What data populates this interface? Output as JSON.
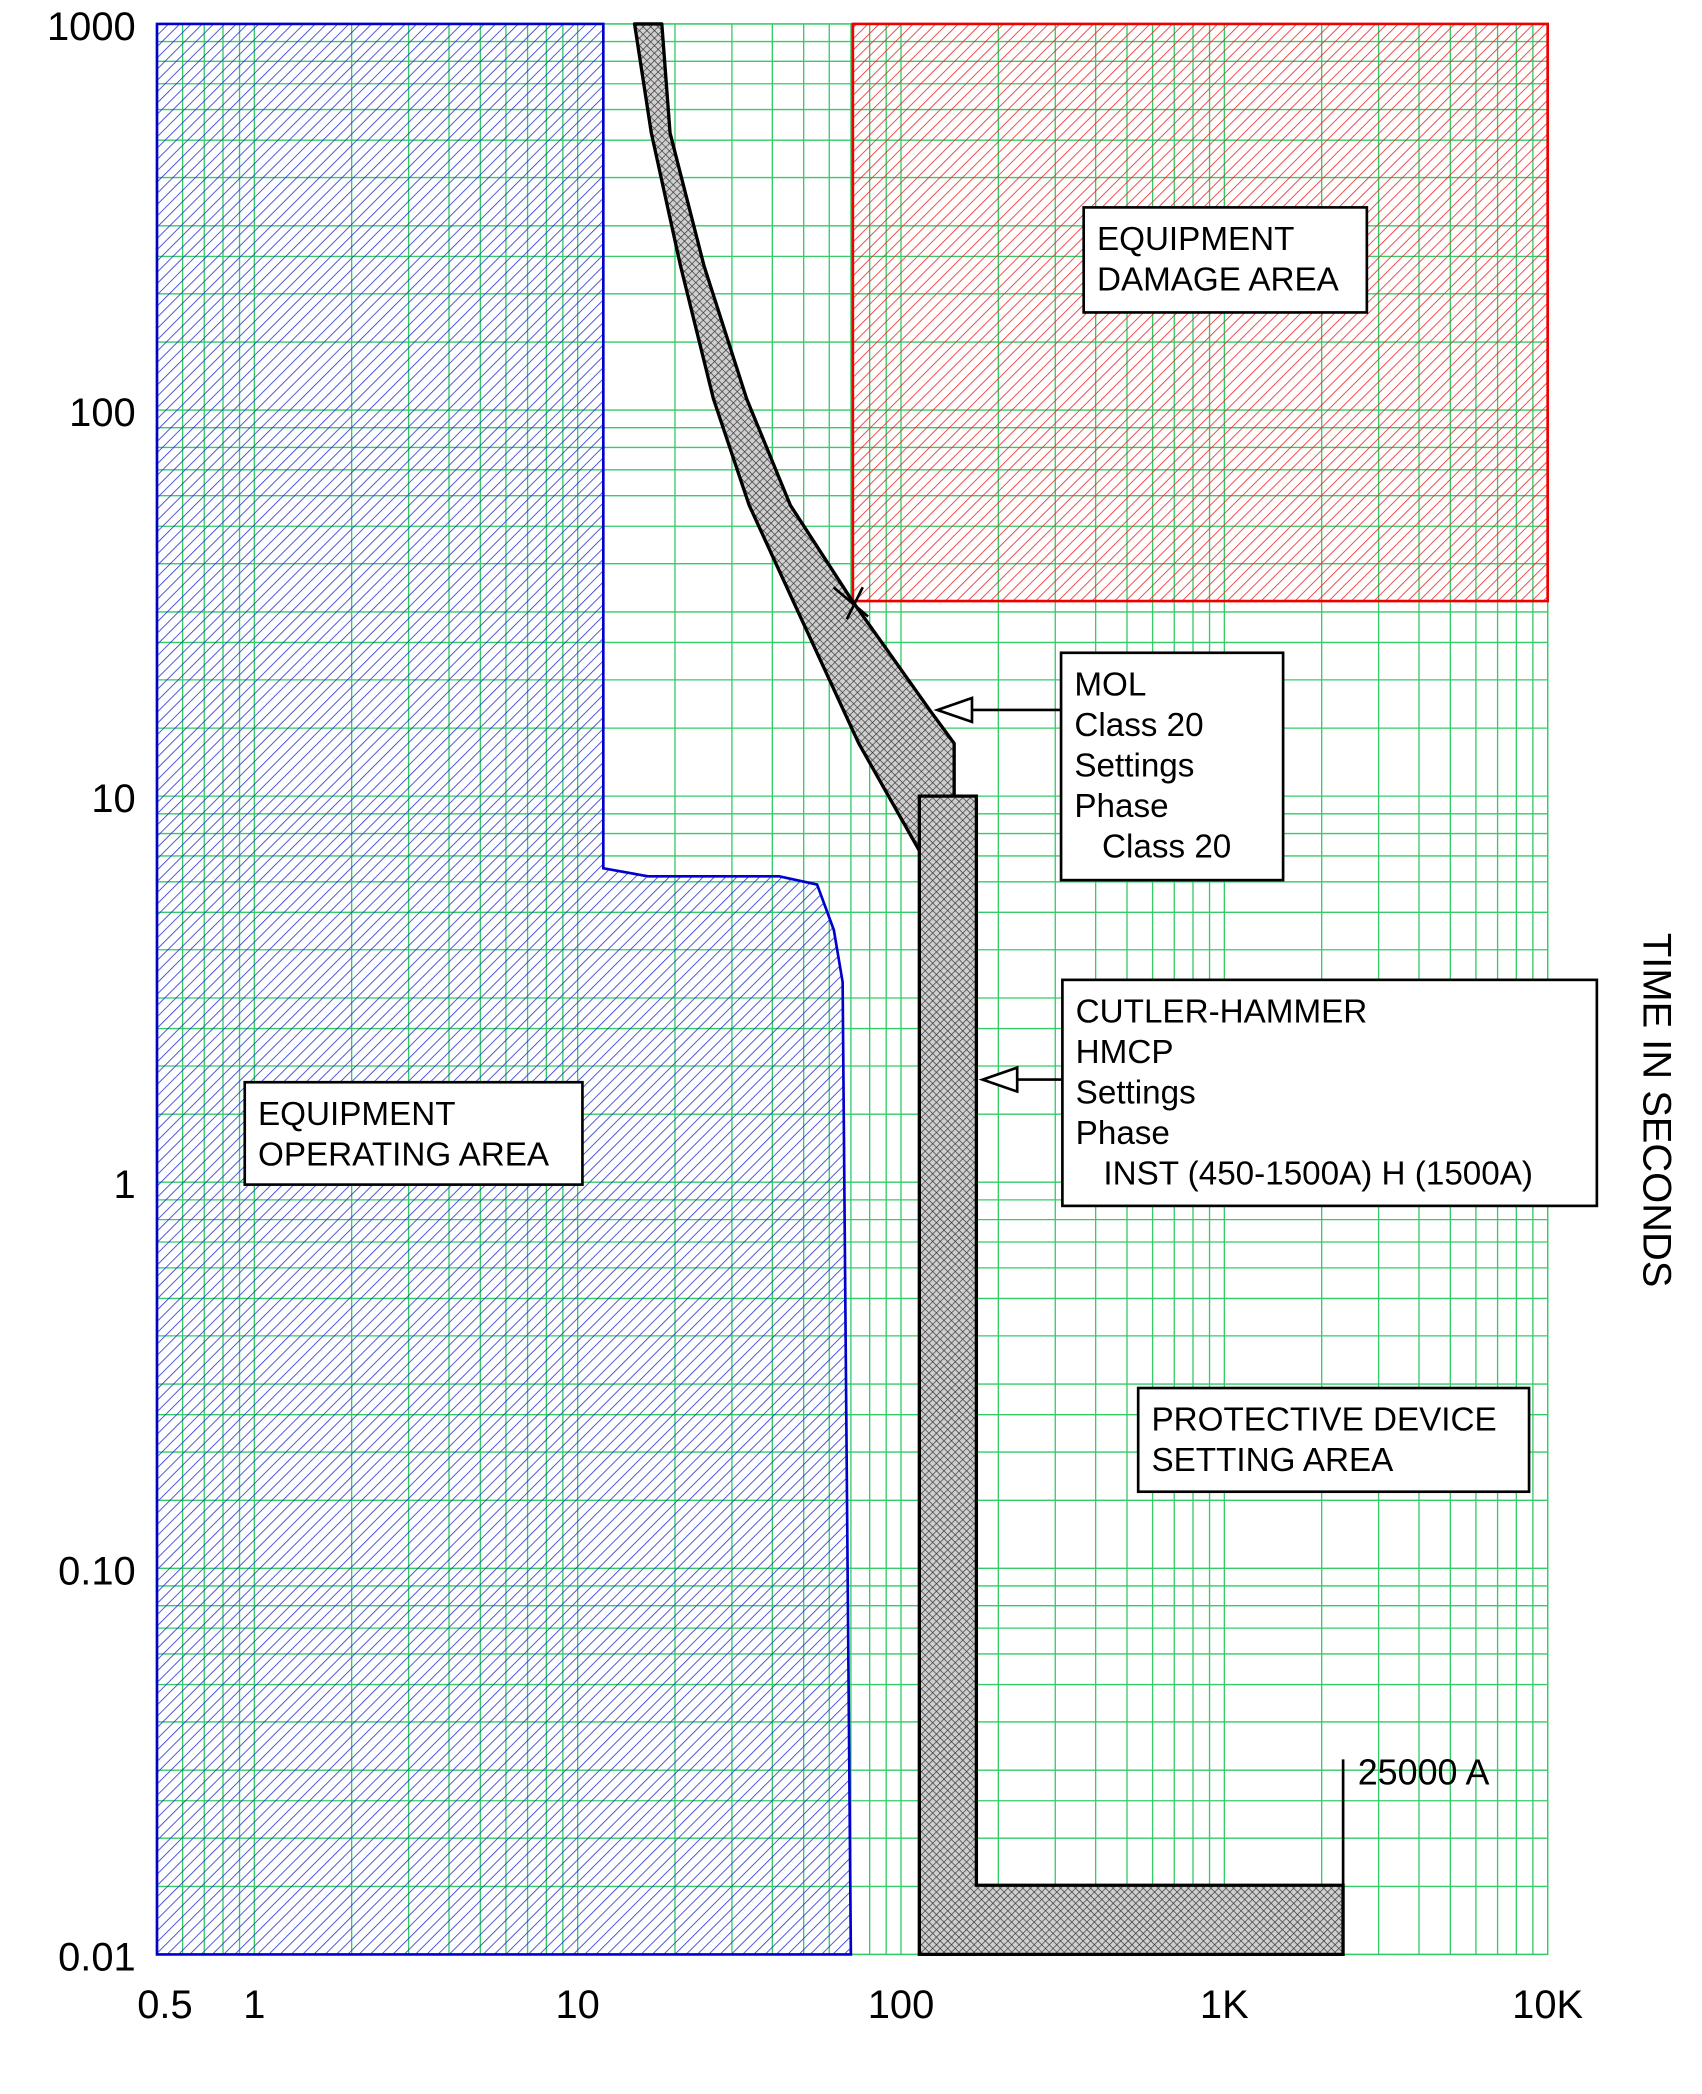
{
  "chart_data": {
    "type": "area",
    "title": "",
    "xlabel": "",
    "ylabel": "TIME IN SECONDS",
    "x_scale": "log",
    "y_scale": "log",
    "xlim": [
      0.5,
      10000
    ],
    "ylim": [
      0.01,
      1000
    ],
    "grid": true,
    "x_ticks": [
      {
        "value": 0.5,
        "label": "0.5"
      },
      {
        "value": 1,
        "label": "1"
      },
      {
        "value": 10,
        "label": "10"
      },
      {
        "value": 100,
        "label": "100"
      },
      {
        "value": 1000,
        "label": "1K"
      },
      {
        "value": 10000,
        "label": "10K"
      }
    ],
    "y_ticks": [
      {
        "value": 1000,
        "label": "1000"
      },
      {
        "value": 100,
        "label": "100"
      },
      {
        "value": 10,
        "label": "10"
      },
      {
        "value": 1,
        "label": "1"
      },
      {
        "value": 0.1,
        "label": "0.10"
      },
      {
        "value": 0.01,
        "label": "0.01"
      }
    ],
    "colors": {
      "grid": "#33cc66",
      "operating": "#0000cc",
      "damage": "#ee0000",
      "device": "#000000"
    },
    "regions": [
      {
        "id": "operating",
        "label": [
          "EQUIPMENT",
          "OPERATING AREA"
        ],
        "points": [
          [
            0.5,
            1000
          ],
          [
            12,
            1000
          ],
          [
            12,
            6.5
          ],
          [
            16.5,
            6.2
          ],
          [
            42,
            6.2
          ],
          [
            55,
            5.9
          ],
          [
            62,
            4.5
          ],
          [
            66,
            3.3
          ],
          [
            70,
            0.01
          ],
          [
            0.5,
            0.01
          ]
        ]
      },
      {
        "id": "damage",
        "label": [
          "EQUIPMENT",
          "DAMAGE AREA"
        ],
        "points": [
          [
            71,
            1000
          ],
          [
            10000,
            1000
          ],
          [
            10000,
            32
          ],
          [
            71,
            32
          ]
        ]
      },
      {
        "id": "protective",
        "label": [
          "PROTECTIVE DEVICE",
          "SETTING AREA"
        ]
      }
    ],
    "series": [
      {
        "id": "mol",
        "label": [
          "MOL",
          "Class 20",
          "Settings",
          "Phase",
          "   Class 20"
        ],
        "lower_edge": [
          [
            15,
            1000
          ],
          [
            16.9,
            522
          ],
          [
            20.8,
            236
          ],
          [
            26.3,
            107
          ],
          [
            33.9,
            56.7
          ],
          [
            46.3,
            32.1
          ],
          [
            74,
            13.7
          ],
          [
            146,
            5.0
          ]
        ],
        "upper_edge": [
          [
            18.2,
            1000
          ],
          [
            19.3,
            522
          ],
          [
            24.6,
            236
          ],
          [
            33.3,
            107
          ],
          [
            45.5,
            56.7
          ],
          [
            70.6,
            32.1
          ],
          [
            124,
            16.5
          ],
          [
            146,
            13.7
          ],
          [
            146,
            5.0
          ]
        ]
      },
      {
        "id": "hmcp",
        "label": [
          "CUTLER-HAMMER",
          "HMCP",
          "Settings",
          "Phase",
          "   INST (450-1500A) H (1500A)"
        ],
        "points": [
          [
            114,
            10
          ],
          [
            171,
            10
          ],
          [
            171,
            0.0151
          ],
          [
            2330,
            0.0151
          ],
          [
            2330,
            0.01
          ],
          [
            114,
            0.01
          ]
        ]
      }
    ],
    "annotations": [
      {
        "text": "25000 A",
        "line": [
          [
            2330,
            0.032
          ],
          [
            2330,
            0.01
          ]
        ]
      }
    ]
  }
}
